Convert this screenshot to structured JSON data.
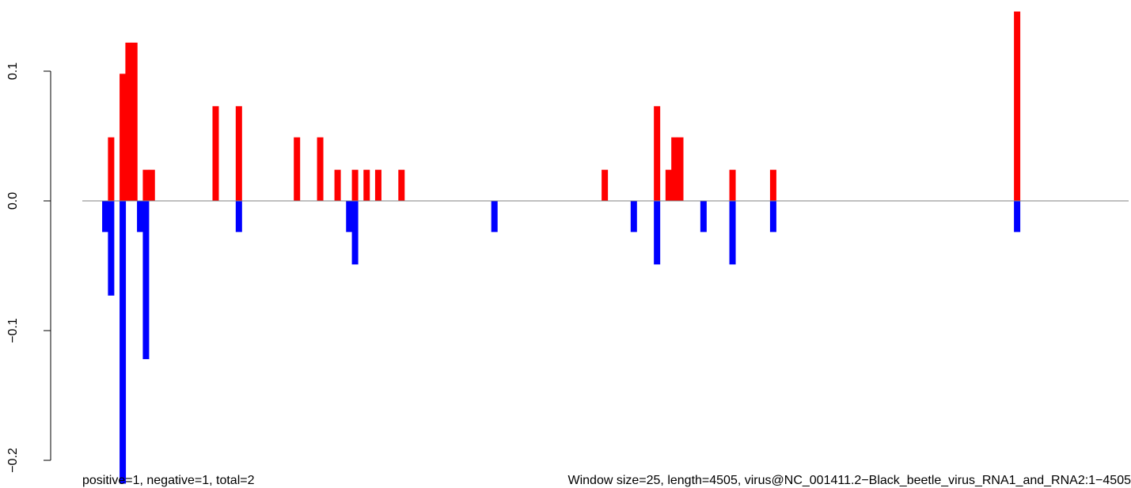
{
  "chart_data": {
    "type": "bar",
    "title": "",
    "xlabel": "",
    "ylabel": "",
    "ylim": [
      -0.21,
      0.145
    ],
    "xlim": [
      1,
      4505
    ],
    "grid": false,
    "colors": {
      "positive": "#ff0000",
      "negative": "#0000ff",
      "baseline": "#808080"
    },
    "yticks": [
      {
        "value": 0.1,
        "label": "0.1"
      },
      {
        "value": 0.0,
        "label": "0.0"
      },
      {
        "value": -0.1,
        "label": "−0.1"
      },
      {
        "value": -0.2,
        "label": "−0.2"
      }
    ],
    "series": [
      {
        "name": "positive",
        "x": [
          125,
          175,
          200,
          225,
          275,
          300,
          575,
          675,
          925,
          1025,
          1100,
          1175,
          1225,
          1275,
          1375,
          2250,
          2475,
          2525,
          2550,
          2575,
          2800,
          2975,
          4025
        ],
        "values": [
          0.049,
          0.098,
          0.122,
          0.122,
          0.024,
          0.024,
          0.073,
          0.073,
          0.049,
          0.049,
          0.024,
          0.024,
          0.024,
          0.024,
          0.024,
          0.024,
          0.073,
          0.024,
          0.049,
          0.049,
          0.024,
          0.024,
          0.146
        ]
      },
      {
        "name": "negative",
        "x": [
          100,
          125,
          175,
          250,
          275,
          675,
          1150,
          1175,
          1775,
          2375,
          2475,
          2675,
          2800,
          2975,
          4025
        ],
        "values": [
          -0.024,
          -0.073,
          -0.218,
          -0.024,
          -0.122,
          -0.024,
          -0.024,
          -0.049,
          -0.024,
          -0.024,
          -0.049,
          -0.024,
          -0.049,
          -0.024,
          -0.024
        ]
      }
    ]
  },
  "footer": {
    "left": "positive=1, negative=1, total=2",
    "right": "Window size=25, length=4505, virus@NC_001411.2−Black_beetle_virus_RNA1_and_RNA2:1−4505"
  }
}
